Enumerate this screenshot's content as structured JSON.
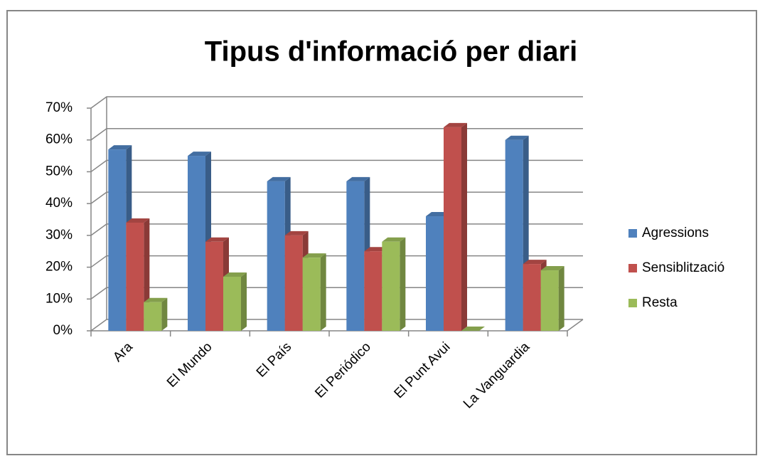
{
  "chart_data": {
    "type": "bar3d",
    "title": "Tipus d'informació per diari",
    "categories": [
      "Ara",
      "El Mundo",
      "El País",
      "El Periódico",
      "El Punt Avui",
      "La Vanguardia"
    ],
    "series": [
      {
        "name": "Agressions",
        "color": "#4f81bd",
        "values": [
          57,
          55,
          47,
          47,
          36,
          60
        ]
      },
      {
        "name": "Sensiblització",
        "color": "#c0504d",
        "values": [
          34,
          28,
          30,
          25,
          64,
          21
        ]
      },
      {
        "name": "Resta",
        "color": "#9bbb59",
        "values": [
          9,
          17,
          23,
          28,
          0,
          19
        ]
      }
    ],
    "ylim": [
      0,
      70
    ],
    "yticks": [
      {
        "value": 0,
        "label": "0%"
      },
      {
        "value": 10,
        "label": "10%"
      },
      {
        "value": 20,
        "label": "20%"
      },
      {
        "value": 30,
        "label": "30%"
      },
      {
        "value": 40,
        "label": "40%"
      },
      {
        "value": 50,
        "label": "50%"
      },
      {
        "value": 60,
        "label": "60%"
      },
      {
        "value": 70,
        "label": "70%"
      }
    ],
    "grid": true,
    "legend": "right"
  }
}
